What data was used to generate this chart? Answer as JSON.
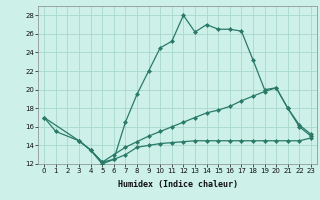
{
  "xlabel": "Humidex (Indice chaleur)",
  "background_color": "#cdf0e8",
  "grid_color": "#a8d8cc",
  "line_color": "#2a7a6a",
  "xlim": [
    -0.5,
    23.5
  ],
  "ylim": [
    12,
    29
  ],
  "xticks": [
    0,
    1,
    2,
    3,
    4,
    5,
    6,
    7,
    8,
    9,
    10,
    11,
    12,
    13,
    14,
    15,
    16,
    17,
    18,
    19,
    20,
    21,
    22,
    23
  ],
  "yticks": [
    12,
    14,
    16,
    18,
    20,
    22,
    24,
    26,
    28
  ],
  "curve1_x": [
    0,
    1,
    3,
    4,
    5,
    6,
    7,
    8,
    9,
    10,
    11,
    12,
    13,
    14,
    15,
    16,
    17,
    18,
    19,
    20,
    21,
    22,
    23
  ],
  "curve1_y": [
    17.0,
    15.5,
    14.5,
    13.5,
    12.0,
    12.5,
    16.5,
    19.5,
    22.0,
    24.5,
    25.2,
    28.0,
    26.2,
    27.0,
    26.5,
    26.5,
    26.3,
    23.2,
    20.0,
    20.2,
    18.0,
    16.0,
    15.0
  ],
  "curve2_x": [
    0,
    3,
    4,
    5,
    6,
    7,
    8,
    9,
    10,
    11,
    12,
    13,
    14,
    15,
    16,
    17,
    18,
    19,
    20,
    21,
    22,
    23
  ],
  "curve2_y": [
    17.0,
    14.5,
    13.5,
    12.2,
    13.0,
    13.8,
    14.4,
    15.0,
    15.5,
    16.0,
    16.5,
    17.0,
    17.5,
    17.8,
    18.2,
    18.8,
    19.3,
    19.8,
    20.2,
    18.0,
    16.2,
    15.2
  ],
  "curve3_x": [
    3,
    4,
    5,
    6,
    7,
    8,
    9,
    10,
    11,
    12,
    13,
    14,
    15,
    16,
    17,
    18,
    19,
    20,
    21,
    22,
    23
  ],
  "curve3_y": [
    14.5,
    13.5,
    12.2,
    12.5,
    13.0,
    13.8,
    14.0,
    14.2,
    14.3,
    14.4,
    14.5,
    14.5,
    14.5,
    14.5,
    14.5,
    14.5,
    14.5,
    14.5,
    14.5,
    14.5,
    14.8
  ]
}
